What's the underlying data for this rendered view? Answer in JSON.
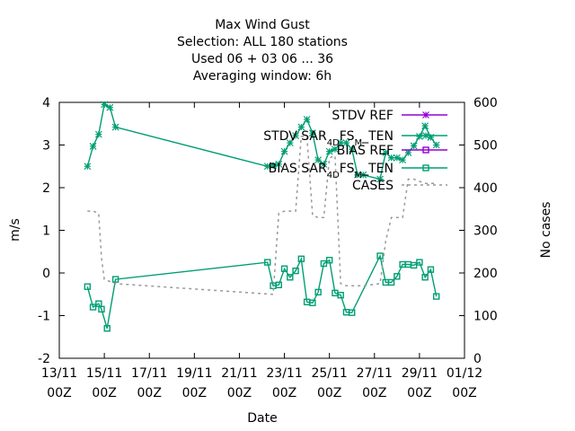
{
  "chart_data": {
    "type": "line",
    "title_lines": [
      "Max Wind Gust",
      "Selection: ALL    180 stations",
      "Used  06 + 03 06 ... 36",
      "Averaging window:  6h"
    ],
    "xlabel": "Date",
    "ylabel": "m/s",
    "y2label": "No cases",
    "xlim": [
      0,
      18
    ],
    "ylim": [
      -2,
      4
    ],
    "y2lim": [
      0,
      600
    ],
    "xticks": [
      {
        "x": 0,
        "top": "13/11",
        "bottom": "00Z"
      },
      {
        "x": 2,
        "top": "15/11",
        "bottom": "00Z"
      },
      {
        "x": 4,
        "top": "17/11",
        "bottom": "00Z"
      },
      {
        "x": 6,
        "top": "19/11",
        "bottom": "00Z"
      },
      {
        "x": 8,
        "top": "21/11",
        "bottom": "00Z"
      },
      {
        "x": 10,
        "top": "23/11",
        "bottom": "00Z"
      },
      {
        "x": 12,
        "top": "25/11",
        "bottom": "00Z"
      },
      {
        "x": 14,
        "top": "27/11",
        "bottom": "00Z"
      },
      {
        "x": 16,
        "top": "29/11",
        "bottom": "00Z"
      },
      {
        "x": 18,
        "top": "01/12",
        "bottom": "00Z"
      }
    ],
    "yticks": [
      "-2",
      "-1",
      "0",
      "1",
      "2",
      "3",
      "4"
    ],
    "y2ticks": [
      "0",
      "100",
      "200",
      "300",
      "400",
      "500",
      "600"
    ],
    "legend_position": "top-right",
    "series": [
      {
        "name": "STDV REF",
        "color": "#9400d3",
        "marker": "star",
        "axis": "y",
        "x": [],
        "y": []
      },
      {
        "name": "STDV SAR_{4D}FS_{M}_TEN",
        "color": "#009e73",
        "marker": "star",
        "axis": "y",
        "x": [
          1.25,
          1.5,
          1.75,
          2.0,
          2.25,
          2.5,
          9.25,
          9.5,
          9.75,
          10.0,
          10.25,
          10.5,
          10.75,
          11.0,
          11.25,
          11.5,
          11.75,
          12.0,
          12.25,
          12.5,
          12.75,
          13.0,
          13.25,
          13.5,
          14.25,
          14.5,
          14.75,
          15.0,
          15.25,
          15.5,
          15.75,
          16.0,
          16.25,
          16.5,
          16.75
        ],
        "y": [
          2.5,
          2.97,
          3.25,
          3.95,
          3.88,
          3.42,
          2.5,
          2.52,
          2.55,
          2.85,
          3.05,
          3.22,
          3.42,
          3.6,
          3.28,
          2.65,
          2.55,
          2.85,
          2.9,
          3.05,
          3.05,
          2.9,
          2.3,
          2.3,
          2.2,
          2.82,
          2.7,
          2.7,
          2.65,
          2.82,
          2.98,
          3.2,
          3.45,
          3.18,
          3.0
        ]
      },
      {
        "name": "BIAS REF",
        "color": "#9400d3",
        "marker": "square",
        "axis": "y",
        "x": [],
        "y": []
      },
      {
        "name": "BIAS SAR_{4D}FS_{M}_TEN",
        "color": "#009e73",
        "marker": "square",
        "axis": "y",
        "x": [
          1.25,
          1.5,
          1.75,
          1.875,
          2.125,
          2.5,
          9.25,
          9.5,
          9.75,
          10.0,
          10.25,
          10.5,
          10.75,
          11.0,
          11.25,
          11.5,
          11.75,
          12.0,
          12.25,
          12.5,
          12.75,
          13.0,
          14.25,
          14.5,
          14.75,
          15.0,
          15.25,
          15.5,
          15.75,
          16.0,
          16.25,
          16.5,
          16.75
        ],
        "y": [
          -0.32,
          -0.8,
          -0.72,
          -0.85,
          -1.3,
          -0.15,
          0.25,
          -0.3,
          -0.28,
          0.1,
          -0.1,
          0.05,
          0.33,
          -0.68,
          -0.7,
          -0.45,
          0.22,
          0.3,
          -0.47,
          -0.52,
          -0.92,
          -0.93,
          0.4,
          -0.22,
          -0.22,
          -0.08,
          0.2,
          0.2,
          0.18,
          0.25,
          -0.1,
          0.08,
          -0.55
        ]
      },
      {
        "name": "CASES",
        "color": "#999999",
        "marker": "none",
        "dash": true,
        "axis": "y2",
        "x": [
          1.25,
          1.5,
          1.75,
          1.875,
          2.0,
          2.25,
          2.5,
          9.5,
          9.75,
          10.0,
          10.25,
          10.5,
          10.75,
          11.0,
          11.25,
          11.5,
          11.75,
          12.0,
          12.25,
          12.5,
          12.75,
          13.0,
          13.25,
          13.5,
          14.25,
          14.5,
          14.75,
          15.0,
          15.25,
          15.5,
          15.75,
          16.0,
          16.25,
          16.5,
          16.75
        ],
        "y": [
          345,
          345,
          340,
          235,
          185,
          180,
          175,
          150,
          340,
          345,
          345,
          345,
          520,
          520,
          335,
          330,
          330,
          470,
          475,
          175,
          170,
          170,
          170,
          170,
          175,
          275,
          330,
          330,
          330,
          420,
          420,
          415,
          410,
          410,
          410
        ]
      }
    ]
  }
}
